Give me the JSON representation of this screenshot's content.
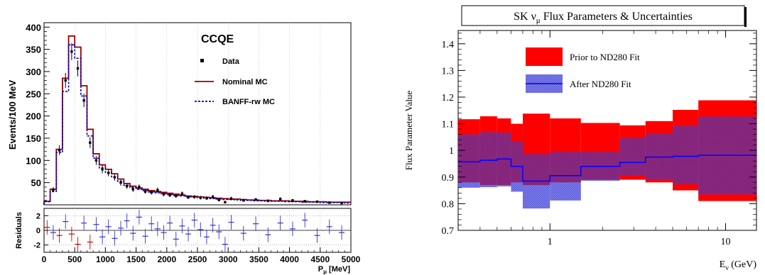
{
  "chart_data": [
    {
      "type": "histogram",
      "title": "CCQE",
      "xlabel": "P",
      "xlabel_sub": "μ",
      "xlabel_unit": " [MeV]",
      "ylabel": "Events/100 MeV",
      "xlim": [
        0,
        5000
      ],
      "ylim": [
        0,
        410
      ],
      "x_ticks": [
        0,
        500,
        1000,
        1500,
        2000,
        2500,
        3000,
        3500,
        4000,
        4500,
        5000
      ],
      "y_ticks": [
        50,
        100,
        150,
        200,
        250,
        300,
        350,
        400
      ],
      "legend_position": "top-right",
      "legend": {
        "data": "Data",
        "nominal": "Nominal MC",
        "banff": "BANFF-rw MC"
      },
      "bin_width": 100,
      "x_bins_start": 0,
      "nominal_mc": [
        8,
        35,
        125,
        285,
        380,
        355,
        268,
        170,
        115,
        90,
        80,
        70,
        58,
        48,
        42,
        38,
        35,
        32,
        30,
        28,
        26,
        24,
        22,
        20,
        19,
        18,
        17,
        16,
        15,
        14,
        13,
        13,
        12,
        11,
        11,
        10,
        10,
        9,
        9,
        9,
        8,
        8,
        8,
        7,
        7,
        7,
        6,
        6,
        6,
        6
      ],
      "banff_mc": [
        7,
        30,
        118,
        255,
        360,
        330,
        245,
        155,
        105,
        83,
        73,
        63,
        53,
        44,
        39,
        35,
        32,
        29,
        27,
        25,
        23,
        21,
        20,
        18,
        17,
        16,
        15,
        14,
        13,
        12,
        12,
        11,
        10,
        10,
        9,
        9,
        8,
        8,
        8,
        7,
        7,
        7,
        6,
        6,
        6,
        5,
        5,
        5,
        5,
        4
      ],
      "data_points": [
        {
          "x": 150,
          "y": 34,
          "err": 6
        },
        {
          "x": 250,
          "y": 123,
          "err": 11
        },
        {
          "x": 350,
          "y": 280,
          "err": 17
        },
        {
          "x": 450,
          "y": 345,
          "err": 19
        },
        {
          "x": 550,
          "y": 307,
          "err": 18
        },
        {
          "x": 650,
          "y": 235,
          "err": 15
        },
        {
          "x": 750,
          "y": 140,
          "err": 12
        },
        {
          "x": 850,
          "y": 100,
          "err": 10
        },
        {
          "x": 950,
          "y": 80,
          "err": 9
        },
        {
          "x": 1050,
          "y": 72,
          "err": 8
        },
        {
          "x": 1150,
          "y": 62,
          "err": 8
        },
        {
          "x": 1250,
          "y": 50,
          "err": 7
        },
        {
          "x": 1350,
          "y": 42,
          "err": 6
        },
        {
          "x": 1450,
          "y": 35,
          "err": 6
        },
        {
          "x": 1550,
          "y": 40,
          "err": 6
        },
        {
          "x": 1650,
          "y": 30,
          "err": 5
        },
        {
          "x": 1750,
          "y": 28,
          "err": 5
        },
        {
          "x": 1850,
          "y": 33,
          "err": 6
        },
        {
          "x": 1950,
          "y": 24,
          "err": 5
        },
        {
          "x": 2050,
          "y": 22,
          "err": 5
        },
        {
          "x": 2150,
          "y": 20,
          "err": 4
        },
        {
          "x": 2250,
          "y": 25,
          "err": 5
        },
        {
          "x": 2350,
          "y": 17,
          "err": 4
        },
        {
          "x": 2450,
          "y": 18,
          "err": 4
        },
        {
          "x": 2550,
          "y": 16,
          "err": 4
        },
        {
          "x": 2650,
          "y": 15,
          "err": 4
        },
        {
          "x": 2750,
          "y": 18,
          "err": 4
        },
        {
          "x": 2850,
          "y": 11,
          "err": 3
        },
        {
          "x": 2950,
          "y": 6,
          "err": 2
        },
        {
          "x": 3050,
          "y": 14,
          "err": 4
        },
        {
          "x": 3250,
          "y": 10,
          "err": 3
        },
        {
          "x": 3450,
          "y": 12,
          "err": 3
        },
        {
          "x": 3650,
          "y": 9,
          "err": 3
        },
        {
          "x": 3850,
          "y": 13,
          "err": 4
        },
        {
          "x": 4050,
          "y": 10,
          "err": 3
        },
        {
          "x": 4250,
          "y": 8,
          "err": 3
        },
        {
          "x": 4450,
          "y": 7,
          "err": 3
        },
        {
          "x": 4650,
          "y": 5,
          "err": 2
        },
        {
          "x": 4850,
          "y": 4,
          "err": 2
        }
      ]
    },
    {
      "type": "line",
      "panel": "residuals",
      "ylabel": "Residuals",
      "xlim": [
        0,
        5000
      ],
      "ylim": [
        -3,
        3
      ],
      "y_ticks": [
        -2,
        0,
        2
      ],
      "points": [
        {
          "x": 50,
          "y": 0.4,
          "c": "#cc0000"
        },
        {
          "x": 150,
          "y": -0.3,
          "c": "#3333cc"
        },
        {
          "x": 250,
          "y": -0.7,
          "c": "#cc0000"
        },
        {
          "x": 350,
          "y": 1.2,
          "c": "#3333cc"
        },
        {
          "x": 450,
          "y": -0.5,
          "c": "#cc0000"
        },
        {
          "x": 550,
          "y": -1.9,
          "c": "#cc0000"
        },
        {
          "x": 650,
          "y": 1.0,
          "c": "#3333cc"
        },
        {
          "x": 750,
          "y": -1.6,
          "c": "#cc0000"
        },
        {
          "x": 850,
          "y": 0.8,
          "c": "#3333cc"
        },
        {
          "x": 950,
          "y": -0.9,
          "c": "#3333cc"
        },
        {
          "x": 1050,
          "y": 0.5,
          "c": "#3333cc"
        },
        {
          "x": 1150,
          "y": -1.1,
          "c": "#3333cc"
        },
        {
          "x": 1250,
          "y": 0.3,
          "c": "#3333cc"
        },
        {
          "x": 1350,
          "y": 1.3,
          "c": "#3333cc"
        },
        {
          "x": 1450,
          "y": -0.4,
          "c": "#3333cc"
        },
        {
          "x": 1550,
          "y": 1.8,
          "c": "#3333cc"
        },
        {
          "x": 1650,
          "y": -0.8,
          "c": "#3333cc"
        },
        {
          "x": 1750,
          "y": 0.9,
          "c": "#3333cc"
        },
        {
          "x": 1850,
          "y": 0.2,
          "c": "#3333cc"
        },
        {
          "x": 1950,
          "y": -0.3,
          "c": "#3333cc"
        },
        {
          "x": 2050,
          "y": 1.0,
          "c": "#3333cc"
        },
        {
          "x": 2150,
          "y": -1.2,
          "c": "#3333cc"
        },
        {
          "x": 2250,
          "y": 0.6,
          "c": "#3333cc"
        },
        {
          "x": 2350,
          "y": -0.5,
          "c": "#3333cc"
        },
        {
          "x": 2450,
          "y": 1.4,
          "c": "#3333cc"
        },
        {
          "x": 2550,
          "y": 0.1,
          "c": "#3333cc"
        },
        {
          "x": 2650,
          "y": -0.9,
          "c": "#3333cc"
        },
        {
          "x": 2750,
          "y": 0.7,
          "c": "#3333cc"
        },
        {
          "x": 2850,
          "y": -0.2,
          "c": "#3333cc"
        },
        {
          "x": 2950,
          "y": -1.9,
          "c": "#3333cc"
        },
        {
          "x": 3050,
          "y": 1.1,
          "c": "#3333cc"
        },
        {
          "x": 3250,
          "y": -0.4,
          "c": "#3333cc"
        },
        {
          "x": 3450,
          "y": 0.9,
          "c": "#3333cc"
        },
        {
          "x": 3650,
          "y": -0.6,
          "c": "#3333cc"
        },
        {
          "x": 3850,
          "y": 1.0,
          "c": "#3333cc"
        },
        {
          "x": 4050,
          "y": 0.2,
          "c": "#3333cc"
        },
        {
          "x": 4250,
          "y": 1.4,
          "c": "#3333cc"
        },
        {
          "x": 4450,
          "y": -0.7,
          "c": "#3333cc"
        },
        {
          "x": 4650,
          "y": 0.5,
          "c": "#3333cc"
        },
        {
          "x": 4850,
          "y": -0.3,
          "c": "#3333cc"
        }
      ]
    },
    {
      "type": "area",
      "title": "SK ν",
      "title_sub": "μ",
      "title_rest": " Flux Parameters & Uncertainties",
      "xlabel": "E",
      "xlabel_sub": "ν",
      "xlabel_unit": " (GeV)",
      "ylabel": "Flux Parameter Value",
      "x_scale": "log",
      "xlim": [
        0.3,
        15
      ],
      "ylim": [
        0.7,
        1.45
      ],
      "x_ticks": [
        1,
        10
      ],
      "y_ticks": [
        0.7,
        0.8,
        0.9,
        1,
        1.1,
        1.2,
        1.3,
        1.4
      ],
      "legend_position": "top-left",
      "legend": {
        "prior": "Prior to ND280 Fit",
        "after": "After ND280 Fit"
      },
      "bin_edges": [
        0.3,
        0.4,
        0.5,
        0.6,
        0.7,
        1.0,
        1.5,
        2.5,
        3.5,
        5.0,
        7.0,
        30.0
      ],
      "prior_band": [
        {
          "lo": 0.88,
          "hi": 1.117
        },
        {
          "lo": 0.87,
          "hi": 1.128
        },
        {
          "lo": 0.87,
          "hi": 1.12
        },
        {
          "lo": 0.88,
          "hi": 1.1
        },
        {
          "lo": 0.87,
          "hi": 1.138
        },
        {
          "lo": 0.88,
          "hi": 1.12
        },
        {
          "lo": 0.89,
          "hi": 1.103
        },
        {
          "lo": 0.89,
          "hi": 1.094
        },
        {
          "lo": 0.88,
          "hi": 1.11
        },
        {
          "lo": 0.85,
          "hi": 1.152
        },
        {
          "lo": 0.81,
          "hi": 1.188
        }
      ],
      "after_band": [
        {
          "lo": 0.86,
          "hi": 1.06
        },
        {
          "lo": 0.862,
          "hi": 1.068
        },
        {
          "lo": 0.865,
          "hi": 1.067
        },
        {
          "lo": 0.845,
          "hi": 1.035
        },
        {
          "lo": 0.782,
          "hi": 0.986
        },
        {
          "lo": 0.812,
          "hi": 0.994
        },
        {
          "lo": 0.886,
          "hi": 0.994
        },
        {
          "lo": 0.905,
          "hi": 1.046
        },
        {
          "lo": 0.889,
          "hi": 1.062
        },
        {
          "lo": 0.873,
          "hi": 1.092
        },
        {
          "lo": 0.835,
          "hi": 1.127
        }
      ],
      "after_central": [
        0.957,
        0.963,
        0.968,
        0.94,
        0.885,
        0.905,
        0.94,
        0.955,
        0.975,
        0.978,
        0.982
      ]
    }
  ]
}
